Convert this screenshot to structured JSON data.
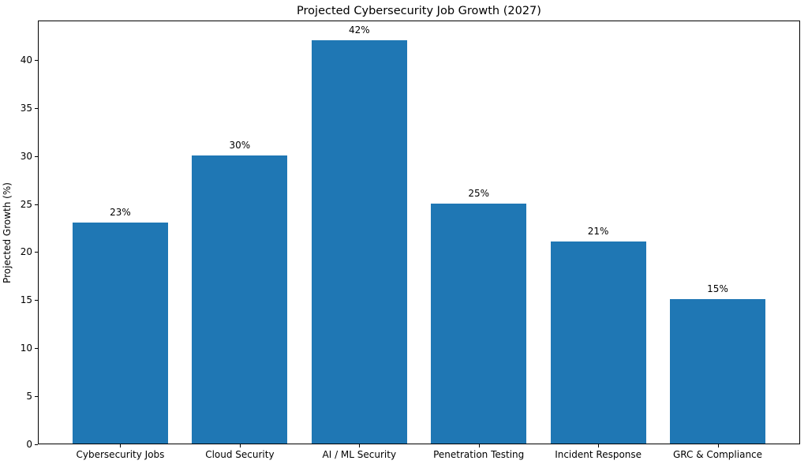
{
  "chart_data": {
    "type": "bar",
    "title": "Projected Cybersecurity Job Growth (2027)",
    "categories": [
      "Cybersecurity Jobs",
      "Cloud Security",
      "AI / ML Security",
      "Penetration Testing",
      "Incident Response",
      "GRC & Compliance"
    ],
    "values": [
      23,
      30,
      42,
      25,
      21,
      15
    ],
    "bar_labels": [
      "23%",
      "30%",
      "42%",
      "25%",
      "21%",
      "15%"
    ],
    "xlabel": "",
    "ylabel": "Projected Growth (%)",
    "ylim": [
      0,
      44.1
    ],
    "yticks": [
      0,
      5,
      10,
      15,
      20,
      25,
      30,
      35,
      40
    ],
    "grid": false,
    "legend": "none",
    "bar_color": "#1f77b4"
  }
}
